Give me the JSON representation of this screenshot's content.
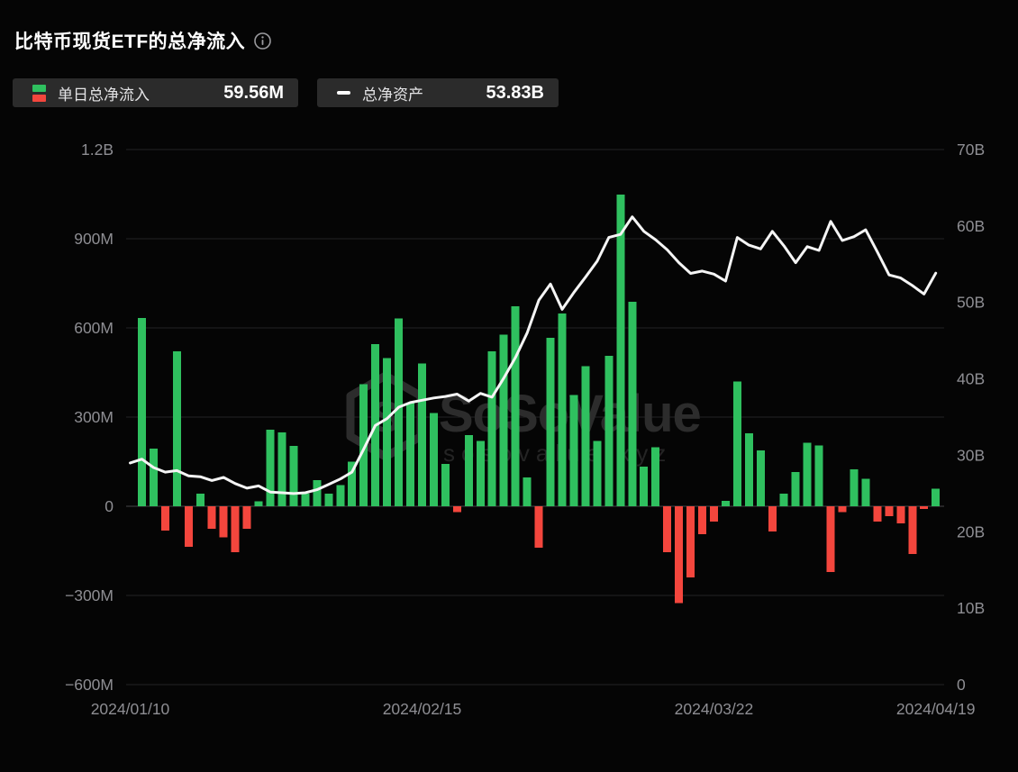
{
  "header": {
    "title": "比特币现货ETF的总净流入",
    "info_icon": "info-circle-icon"
  },
  "legend": {
    "daily": {
      "label": "单日总净流入",
      "value": "59.56M"
    },
    "assets": {
      "label": "总净资产",
      "value": "53.83B"
    }
  },
  "watermark": {
    "brand": "SoSoValue",
    "domain": "sosovalue.xyz"
  },
  "colors": {
    "positive": "#2fc05f",
    "negative": "#f4463d",
    "line": "#f5f5f5",
    "grid": "#232325",
    "zero_line": "#454548",
    "label": "#8e8e93",
    "pill_bg": "#2b2b2b",
    "background": "#050505",
    "watermark": "#2c2c2c"
  },
  "chart_data": {
    "type": "combo-bar-line",
    "title": "比特币现货ETF的总净流入",
    "legend_position": "top-left",
    "grid": "horizontal",
    "left_axis": {
      "unit": "M",
      "ticks": [
        "1.2B",
        "900M",
        "600M",
        "300M",
        "0",
        "−300M",
        "−600M"
      ],
      "values": [
        1200,
        900,
        600,
        300,
        0,
        -300,
        -600
      ],
      "range": [
        -600,
        1200
      ]
    },
    "right_axis": {
      "unit": "B",
      "ticks": [
        "70B",
        "60B",
        "50B",
        "40B",
        "30B",
        "20B",
        "10B",
        "0"
      ],
      "values": [
        70,
        60,
        50,
        40,
        30,
        20,
        10,
        0
      ],
      "range": [
        0,
        70
      ]
    },
    "x_ticks": [
      {
        "label": "2024/01/10",
        "slot": 0
      },
      {
        "label": "2024/02/15",
        "slot": 25
      },
      {
        "label": "2024/03/22",
        "slot": 50
      },
      {
        "label": "2024/04/19",
        "slot": 69
      }
    ],
    "dates": [
      "2024/01/10",
      "2024/01/11",
      "2024/01/12",
      "2024/01/16",
      "2024/01/17",
      "2024/01/18",
      "2024/01/19",
      "2024/01/22",
      "2024/01/23",
      "2024/01/24",
      "2024/01/25",
      "2024/01/26",
      "2024/01/29",
      "2024/01/30",
      "2024/01/31",
      "2024/02/01",
      "2024/02/02",
      "2024/02/05",
      "2024/02/06",
      "2024/02/07",
      "2024/02/08",
      "2024/02/09",
      "2024/02/12",
      "2024/02/13",
      "2024/02/14",
      "2024/02/15",
      "2024/02/16",
      "2024/02/20",
      "2024/02/21",
      "2024/02/22",
      "2024/02/23",
      "2024/02/26",
      "2024/02/27",
      "2024/02/28",
      "2024/02/29",
      "2024/03/01",
      "2024/03/04",
      "2024/03/05",
      "2024/03/06",
      "2024/03/07",
      "2024/03/08",
      "2024/03/11",
      "2024/03/12",
      "2024/03/13",
      "2024/03/14",
      "2024/03/15",
      "2024/03/18",
      "2024/03/19",
      "2024/03/20",
      "2024/03/21",
      "2024/03/22",
      "2024/03/25",
      "2024/03/26",
      "2024/03/27",
      "2024/03/28",
      "2024/04/01",
      "2024/04/02",
      "2024/04/03",
      "2024/04/04",
      "2024/04/05",
      "2024/04/08",
      "2024/04/09",
      "2024/04/10",
      "2024/04/11",
      "2024/04/12",
      "2024/04/15",
      "2024/04/16",
      "2024/04/17",
      "2024/04/18",
      "2024/04/19"
    ],
    "series": [
      {
        "name": "单日总净流入",
        "type": "bar",
        "unit": "M",
        "values": [
          null,
          633,
          194,
          -82,
          521,
          -136,
          42,
          -75,
          -105,
          -155,
          -76,
          16,
          258,
          248,
          203,
          42,
          88,
          43,
          71,
          150,
          410,
          546,
          498,
          632,
          349,
          481,
          314,
          142,
          -20,
          240,
          220,
          521,
          577,
          673,
          97,
          -140,
          567,
          648,
          375,
          471,
          220,
          506,
          1048,
          688,
          133,
          199,
          -154,
          -326,
          -240,
          -94,
          -52,
          18,
          420,
          245,
          188,
          -85,
          42,
          115,
          213,
          205,
          -221,
          -20,
          124,
          92,
          -52,
          -34,
          -57,
          -161,
          -9,
          59.56
        ]
      },
      {
        "name": "总净资产",
        "type": "line",
        "unit": "B",
        "values": [
          29.0,
          29.5,
          28.4,
          27.8,
          28.0,
          27.3,
          27.2,
          26.7,
          27.1,
          26.3,
          25.7,
          26.0,
          25.2,
          25.1,
          25.0,
          25.1,
          25.5,
          26.2,
          26.9,
          27.8,
          30.8,
          33.9,
          34.8,
          36.3,
          36.9,
          37.2,
          37.5,
          37.7,
          38.0,
          37.1,
          38.1,
          37.6,
          40.1,
          42.8,
          46.0,
          50.3,
          52.4,
          49.1,
          51.3,
          53.3,
          55.4,
          58.5,
          58.9,
          61.2,
          59.3,
          58.2,
          56.9,
          55.2,
          53.8,
          54.1,
          53.7,
          52.8,
          58.5,
          57.5,
          57.0,
          59.3,
          57.4,
          55.2,
          57.3,
          56.8,
          60.6,
          58.1,
          58.6,
          59.5,
          56.6,
          53.6,
          53.2,
          52.2,
          51.1,
          53.83
        ]
      }
    ]
  }
}
